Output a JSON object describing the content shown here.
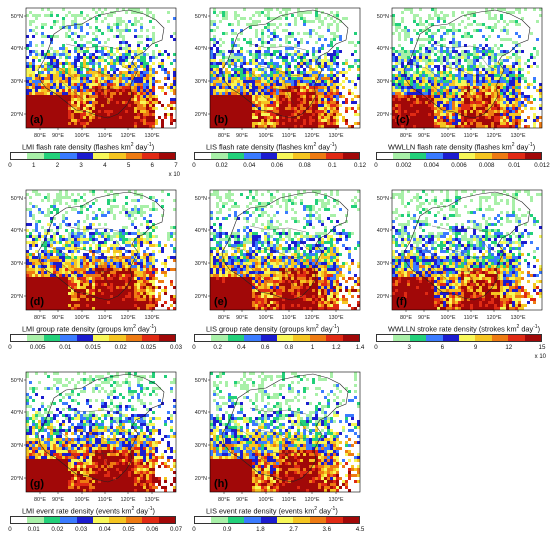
{
  "figure": {
    "lat_labels": [
      "50°N",
      "40°N",
      "30°N",
      "20°N"
    ],
    "lon_labels": [
      "80°E",
      "90°E",
      "100°E",
      "110°E",
      "120°E",
      "130°E"
    ],
    "palette": [
      "#ffffff",
      "#a8f0a8",
      "#22d07a",
      "#3a7bff",
      "#1c1ccf",
      "#f7f758",
      "#f5c521",
      "#ee7a12",
      "#e02a14",
      "#a10808"
    ]
  },
  "panels": [
    {
      "id": "a",
      "label": "(a)",
      "title_prefix": "LMI flash rate density (flashes km",
      "title_suffix": " day",
      "title_end": ")",
      "ticks": [
        "0",
        "1",
        "2",
        "3",
        "4",
        "5",
        "6",
        "7"
      ],
      "multiplier": "x 10",
      "intensity": 1.0
    },
    {
      "id": "b",
      "label": "(b)",
      "title_prefix": "LIS flash rate density (flashes km",
      "title_suffix": " day",
      "title_end": ")",
      "ticks": [
        "0",
        "0.02",
        "0.04",
        "0.06",
        "0.08",
        "0.1",
        "0.12"
      ],
      "multiplier": "",
      "intensity": 0.9
    },
    {
      "id": "c",
      "label": "(c)",
      "title_prefix": "WWLLN flash rate density (flashes km",
      "title_suffix": " day",
      "title_end": ")",
      "ticks": [
        "0",
        "0.002",
        "0.004",
        "0.006",
        "0.008",
        "0.01",
        "0.012"
      ],
      "multiplier": "",
      "intensity": 0.75
    },
    {
      "id": "d",
      "label": "(d)",
      "title_prefix": "LMI group rate density (groups km",
      "title_suffix": " day",
      "title_end": ")",
      "ticks": [
        "0",
        "0.005",
        "0.01",
        "0.015",
        "0.02",
        "0.025",
        "0.03"
      ],
      "multiplier": "",
      "intensity": 1.0
    },
    {
      "id": "e",
      "label": "(e)",
      "title_prefix": "LIS group rate density (groups km",
      "title_suffix": " day",
      "title_end": ")",
      "ticks": [
        "0",
        "0.2",
        "0.4",
        "0.6",
        "0.8",
        "1",
        "1.2",
        "1.4"
      ],
      "multiplier": "",
      "intensity": 0.9
    },
    {
      "id": "f",
      "label": "(f)",
      "title_prefix": "WWLLN stroke rate density (strokes km",
      "title_suffix": " day",
      "title_end": ")",
      "ticks": [
        "0",
        "3",
        "6",
        "9",
        "12",
        "15"
      ],
      "multiplier": "x 10",
      "intensity": 0.8
    },
    {
      "id": "g",
      "label": "(g)",
      "title_prefix": "LMI event rate density (events km",
      "title_suffix": " day",
      "title_end": ")",
      "ticks": [
        "0",
        "0.01",
        "0.02",
        "0.03",
        "0.04",
        "0.05",
        "0.06",
        "0.07"
      ],
      "multiplier": "",
      "intensity": 1.0
    },
    {
      "id": "h",
      "label": "(h)",
      "title_prefix": "LIS event rate density (events km",
      "title_suffix": " day",
      "title_end": ")",
      "ticks": [
        "0",
        "0.9",
        "1.8",
        "2.7",
        "3.6",
        "4.5"
      ],
      "multiplier": "",
      "intensity": 0.9
    }
  ]
}
